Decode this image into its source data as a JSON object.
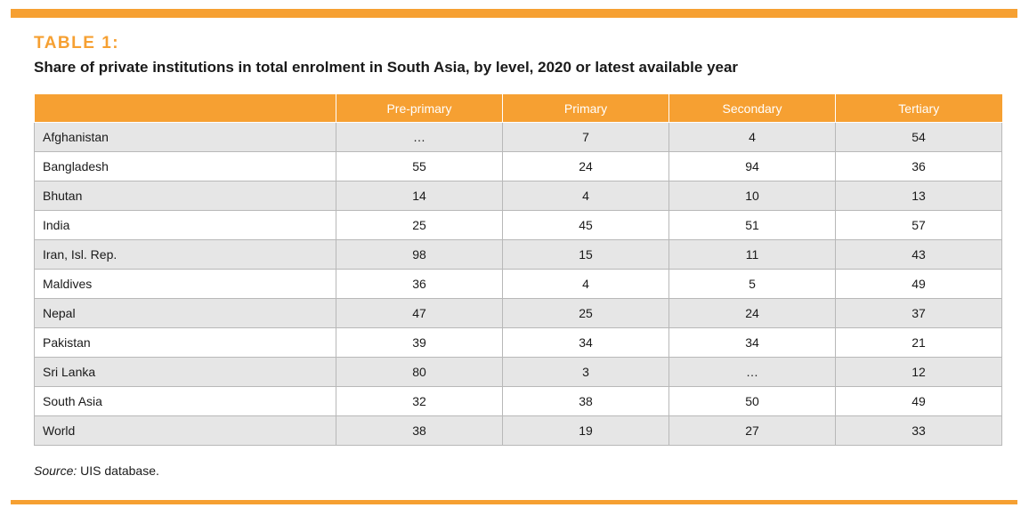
{
  "header": {
    "table_label": "TABLE 1:",
    "title": "Share of private institutions in total enrolment in South Asia, by level, 2020 or latest available year"
  },
  "table": {
    "columns": [
      "",
      "Pre-primary",
      "Primary",
      "Secondary",
      "Tertiary"
    ],
    "rows": [
      {
        "country": "Afghanistan",
        "values": [
          "…",
          "7",
          "4",
          "54"
        ]
      },
      {
        "country": "Bangladesh",
        "values": [
          "55",
          "24",
          "94",
          "36"
        ]
      },
      {
        "country": "Bhutan",
        "values": [
          "14",
          "4",
          "10",
          "13"
        ]
      },
      {
        "country": "India",
        "values": [
          "25",
          "45",
          "51",
          "57"
        ]
      },
      {
        "country": "Iran, Isl. Rep.",
        "values": [
          "98",
          "15",
          "11",
          "43"
        ]
      },
      {
        "country": "Maldives",
        "values": [
          "36",
          "4",
          "5",
          "49"
        ]
      },
      {
        "country": "Nepal",
        "values": [
          "47",
          "25",
          "24",
          "37"
        ]
      },
      {
        "country": "Pakistan",
        "values": [
          "39",
          "34",
          "34",
          "21"
        ]
      },
      {
        "country": "Sri Lanka",
        "values": [
          "80",
          "3",
          "…",
          "12"
        ]
      },
      {
        "country": "South Asia",
        "values": [
          "32",
          "38",
          "50",
          "49"
        ]
      },
      {
        "country": "World",
        "values": [
          "38",
          "19",
          "27",
          "33"
        ]
      }
    ]
  },
  "footer": {
    "source_label": "Source:",
    "source_text": " UIS database."
  },
  "colors": {
    "accent": "#f6a032",
    "row_shade": "#e6e6e6"
  }
}
